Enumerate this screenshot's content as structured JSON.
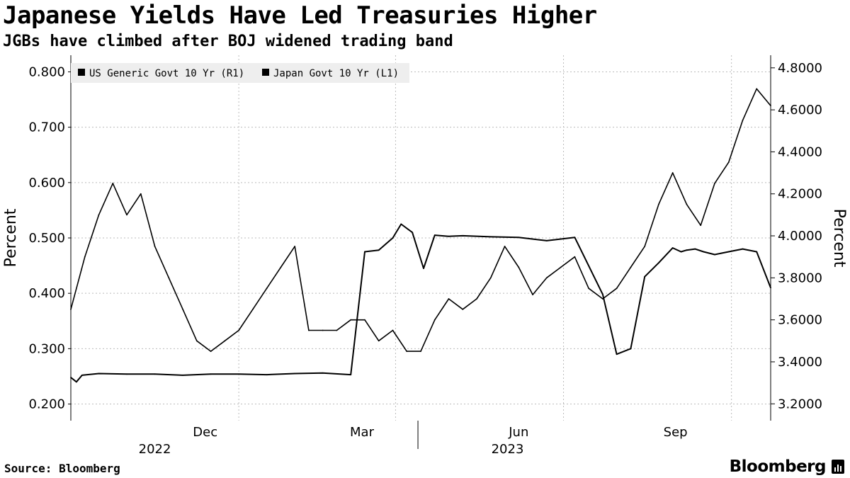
{
  "title": "Japanese Yields Have Led Treasuries Higher",
  "subtitle": "JGBs have climbed after BOJ widened trading band",
  "source": "Source: Bloomberg",
  "brand": "Bloomberg",
  "chart_data": {
    "type": "line",
    "title": "Japanese Yields Have Led Treasuries Higher",
    "subtitle": "JGBs have climbed after BOJ widened trading band",
    "left_axis": {
      "label": "Percent",
      "range": [
        0.17,
        0.83
      ],
      "ticks": [
        "0.800",
        "0.700",
        "0.600",
        "0.500",
        "0.400",
        "0.300",
        "0.200"
      ]
    },
    "right_axis": {
      "label": "Percent",
      "range": [
        3.12,
        4.86
      ],
      "ticks": [
        "4.8000",
        "4.6000",
        "4.4000",
        "4.2000",
        "4.0000",
        "3.8000",
        "3.6000",
        "3.4000",
        "3.2000"
      ]
    },
    "x_axis": {
      "month_labels": [
        "Dec",
        "Mar",
        "Jun",
        "Sep"
      ],
      "year_labels": [
        "2022",
        "2023"
      ]
    },
    "legend": {
      "placement": "top-left",
      "entries": [
        "US Generic Govt 10 Yr (R1)",
        "Japan Govt 10 Yr (L1)"
      ]
    },
    "grid": true,
    "colors": {
      "line": "#000000",
      "grid": "#bbbbbb",
      "legend_bg": "#eeeeee"
    },
    "series": [
      {
        "name": "Japan Govt 10 Yr (L1)",
        "axis": "left",
        "t": [
          0,
          2,
          4,
          10,
          20,
          30,
          40,
          50,
          60,
          70,
          80,
          90,
          100,
          105,
          110,
          115,
          118,
          122,
          126,
          130,
          135,
          140,
          150,
          160,
          170,
          180,
          190,
          195,
          200,
          205,
          210,
          215,
          218,
          220,
          223,
          226,
          230,
          235,
          240,
          245,
          250
        ],
        "values": [
          0.248,
          0.24,
          0.252,
          0.255,
          0.254,
          0.254,
          0.252,
          0.254,
          0.254,
          0.253,
          0.255,
          0.256,
          0.253,
          0.475,
          0.478,
          0.5,
          0.525,
          0.51,
          0.445,
          0.505,
          0.503,
          0.504,
          0.502,
          0.501,
          0.495,
          0.501,
          0.398,
          0.29,
          0.3,
          0.43,
          0.455,
          0.482,
          0.475,
          0.478,
          0.48,
          0.475,
          0.47,
          0.475,
          0.48,
          0.475,
          0.41
        ]
      },
      {
        "name": "US Generic Govt 10 Yr (R1)",
        "axis": "right",
        "t": [
          0,
          5,
          10,
          15,
          20,
          25,
          30,
          35,
          40,
          45,
          50,
          55,
          60,
          65,
          70,
          75,
          80,
          85,
          90,
          95,
          100,
          105,
          110,
          115,
          120,
          125,
          130,
          135,
          140,
          145,
          150,
          155,
          160,
          165,
          170,
          175,
          180,
          185,
          190,
          195,
          200,
          205,
          210,
          215,
          220,
          225,
          230,
          235,
          240,
          245,
          250
        ],
        "values": [
          3.65,
          3.9,
          4.1,
          4.25,
          4.1,
          4.2,
          3.95,
          3.8,
          3.65,
          3.5,
          3.45,
          3.5,
          3.55,
          3.65,
          3.75,
          3.85,
          3.95,
          3.55,
          3.55,
          3.55,
          3.6,
          3.6,
          3.5,
          3.55,
          3.45,
          3.45,
          3.6,
          3.7,
          3.65,
          3.7,
          3.8,
          3.95,
          3.85,
          3.72,
          3.8,
          3.85,
          3.9,
          3.75,
          3.7,
          3.75,
          3.85,
          3.95,
          4.15,
          4.3,
          4.15,
          4.05,
          4.25,
          4.35,
          4.55,
          4.7,
          4.62
        ]
      }
    ]
  }
}
